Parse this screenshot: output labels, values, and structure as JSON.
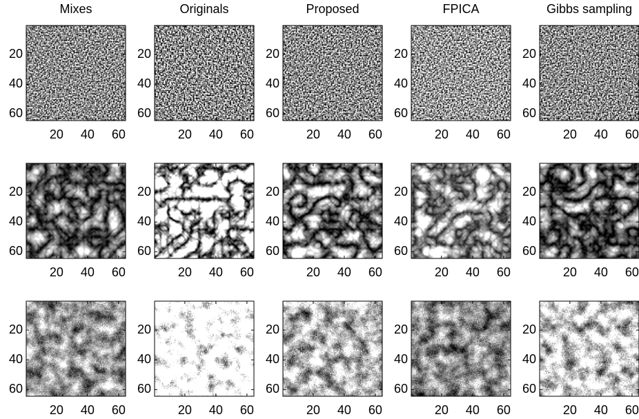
{
  "panels": {
    "titles": [
      "Mixes",
      "Originals",
      "Proposed",
      "FPICA",
      "Gibbs sampling"
    ],
    "rows": 3,
    "xlim": [
      0.5,
      64.5
    ],
    "ylim": [
      0.5,
      64.5
    ],
    "xticks": [
      20,
      40,
      60
    ],
    "yticks": [
      20,
      40,
      60
    ]
  }
}
